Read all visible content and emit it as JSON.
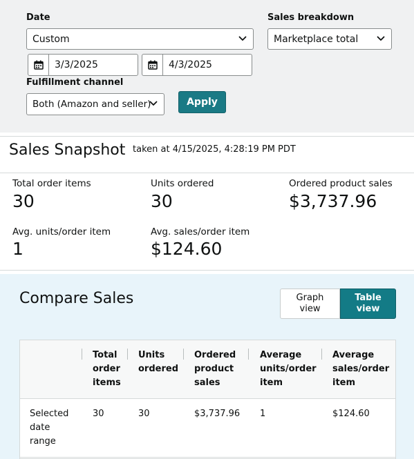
{
  "filters": {
    "date_label": "Date",
    "date_select": "Custom",
    "start_date": "3/3/2025",
    "end_date": "4/3/2025",
    "fulfillment_label": "Fulfillment channel",
    "fulfillment_select": "Both (Amazon and seller)",
    "breakdown_label": "Sales breakdown",
    "breakdown_select": "Marketplace total",
    "apply_label": "Apply"
  },
  "snapshot": {
    "title": "Sales Snapshot",
    "taken_at": "taken at 4/15/2025, 4:28:19 PM PDT",
    "metrics": [
      {
        "label": "Total order items",
        "value": "30"
      },
      {
        "label": "Units ordered",
        "value": "30"
      },
      {
        "label": "Ordered product sales",
        "value": "$3,737.96"
      },
      {
        "label": "Avg. units/order item",
        "value": "1"
      },
      {
        "label": "Avg. sales/order item",
        "value": "$124.60"
      }
    ]
  },
  "compare": {
    "title": "Compare Sales",
    "graph_view_label": "Graph view",
    "table_view_label": "Table view",
    "columns": [
      "Total order items",
      "Units ordered",
      "Ordered product sales",
      "Average units/order item",
      "Average sales/order item"
    ],
    "rows": [
      {
        "label": "Selected date range",
        "values": [
          "30",
          "30",
          "$3,737.96",
          "1",
          "$124.60"
        ]
      }
    ]
  },
  "colors": {
    "accent": "#137b86",
    "panel_bg": "#f0f1f2",
    "compare_bg": "#e8f4fa"
  },
  "icons": [
    "chevron-down-icon",
    "calendar-icon"
  ]
}
